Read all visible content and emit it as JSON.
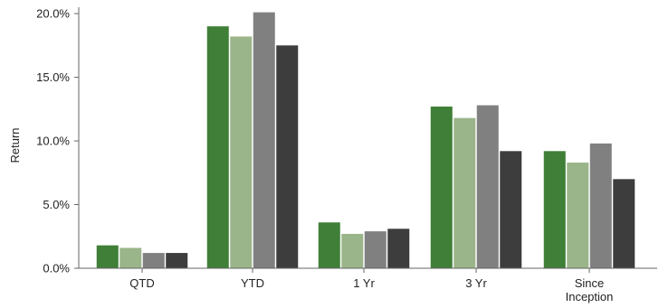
{
  "chart_data": {
    "type": "bar",
    "title": "",
    "xlabel": "",
    "ylabel": "Return",
    "ylim": [
      0,
      20.5
    ],
    "yticks": [
      0,
      5,
      10,
      15,
      20
    ],
    "ytick_labels": [
      "0.0%",
      "5.0%",
      "10.0%",
      "15.0%",
      "20.0%"
    ],
    "categories": [
      "QTD",
      "YTD",
      "1 Yr",
      "3 Yr",
      [
        "Since",
        "Inception"
      ]
    ],
    "grid": false,
    "series": [
      {
        "color": "#3f7f37",
        "values": [
          1.8,
          19.0,
          3.6,
          12.7,
          9.2
        ]
      },
      {
        "color": "#9bb58a",
        "values": [
          1.6,
          18.2,
          2.7,
          11.8,
          8.3
        ]
      },
      {
        "color": "#808080",
        "values": [
          1.2,
          20.1,
          2.9,
          12.8,
          9.8
        ]
      },
      {
        "color": "#3d3d3d",
        "values": [
          1.2,
          17.5,
          3.1,
          9.2,
          7.0
        ]
      }
    ]
  }
}
